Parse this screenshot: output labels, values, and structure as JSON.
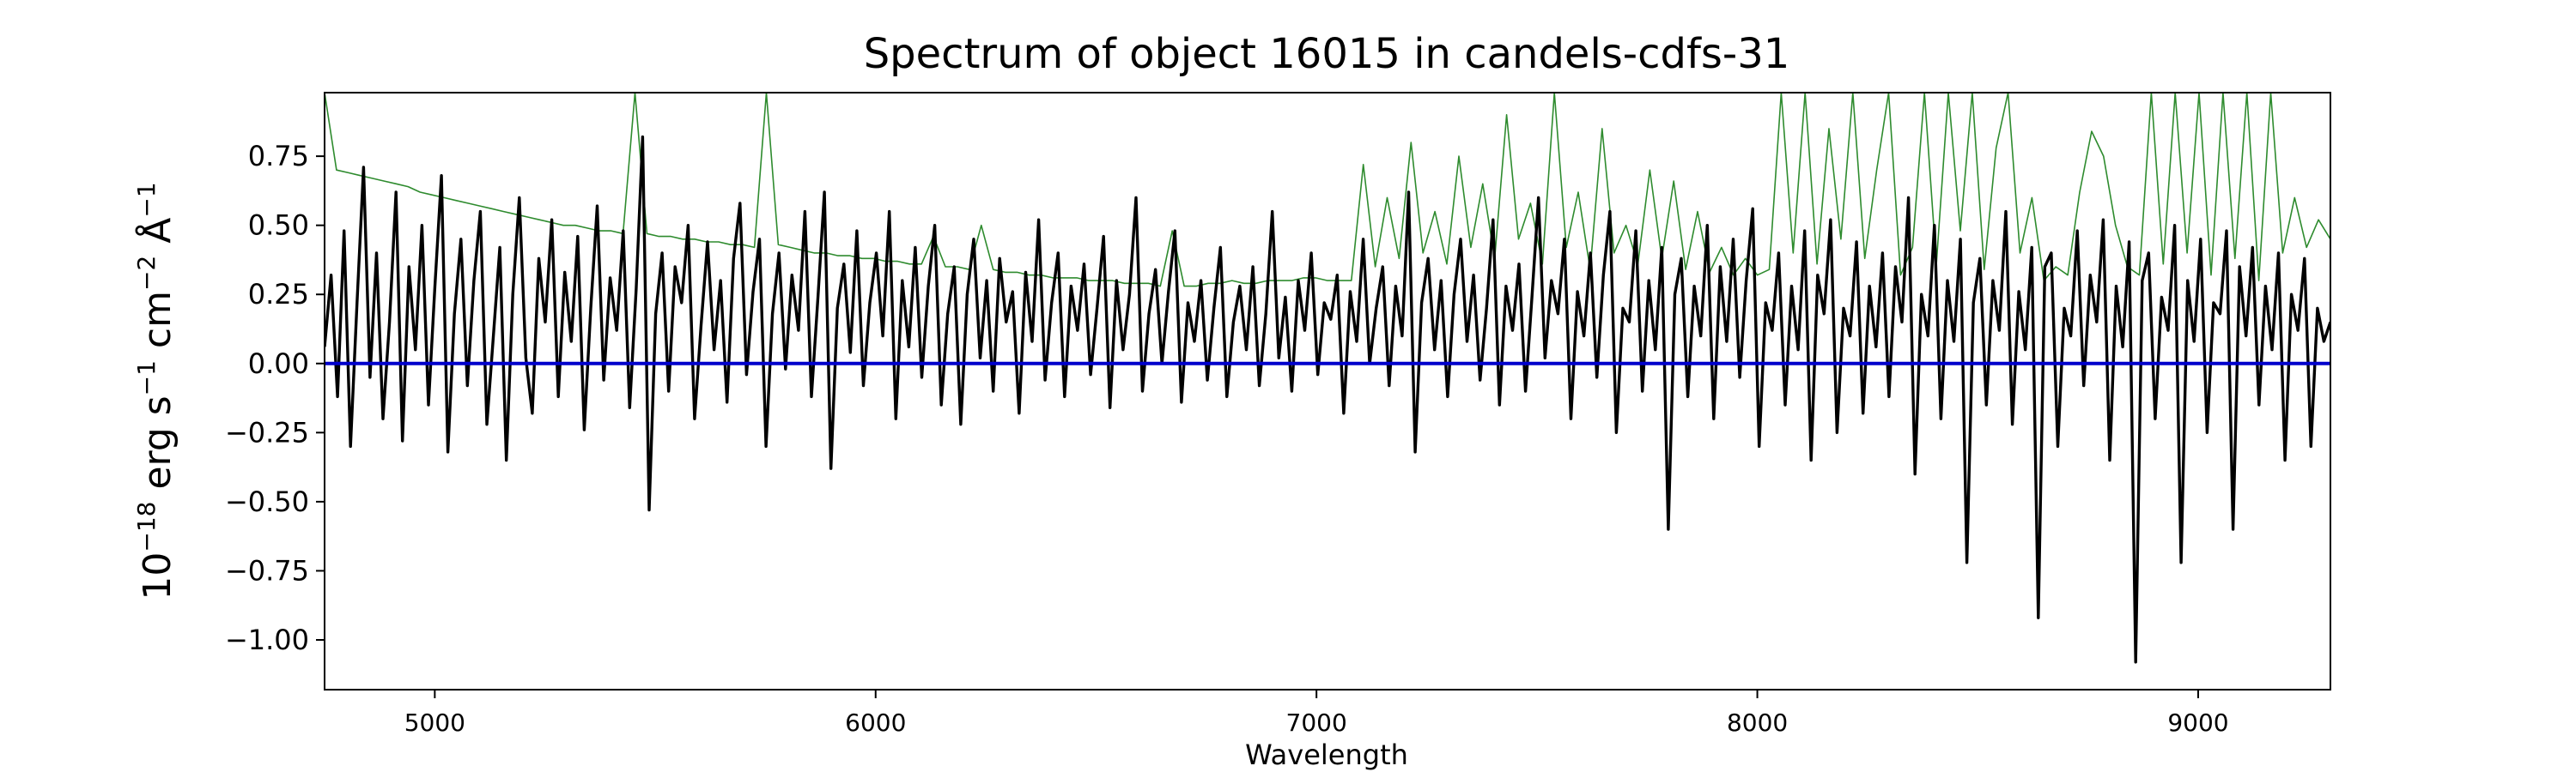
{
  "chart_data": {
    "type": "line",
    "title": "Spectrum of object 16015 in candels-cdfs-31",
    "xlabel": "Wavelength",
    "ylabel": {
      "base": "10",
      "exp1": "−18",
      "t1": " erg s",
      "exp2": "−1",
      "t2": " cm",
      "exp3": "−2",
      "t3": " Å",
      "exp4": "−1"
    },
    "xlim": [
      4750,
      9300
    ],
    "ylim": [
      -1.18,
      0.98
    ],
    "xticks": [
      5000,
      6000,
      7000,
      8000,
      9000
    ],
    "xtick_labels": [
      "5000",
      "6000",
      "7000",
      "8000",
      "9000"
    ],
    "yticks": [
      0.75,
      0.5,
      0.25,
      0.0,
      -0.25,
      -0.5,
      -0.75,
      -1.0
    ],
    "ytick_labels": [
      "0.75",
      "0.50",
      "0.25",
      "0.00",
      "−0.25",
      "−0.50",
      "−0.75",
      "−1.00"
    ],
    "grid": false,
    "colors": {
      "flux": "#000000",
      "error": "#2e8b2e",
      "zero": "#0000cc"
    },
    "series": [
      {
        "key": "flux",
        "x_start": 4750,
        "x_end": 9300,
        "y": [
          0.06,
          0.32,
          -0.12,
          0.48,
          -0.3,
          0.22,
          0.71,
          -0.05,
          0.4,
          -0.2,
          0.15,
          0.62,
          -0.28,
          0.35,
          0.05,
          0.5,
          -0.15,
          0.28,
          0.68,
          -0.32,
          0.18,
          0.45,
          -0.08,
          0.3,
          0.55,
          -0.22,
          0.1,
          0.42,
          -0.35,
          0.25,
          0.6,
          0.02,
          -0.18,
          0.38,
          0.15,
          0.52,
          -0.12,
          0.33,
          0.08,
          0.46,
          -0.24,
          0.2,
          0.57,
          -0.06,
          0.31,
          0.12,
          0.48,
          -0.16,
          0.27,
          0.82,
          -0.53,
          0.18,
          0.4,
          -0.1,
          0.35,
          0.22,
          0.5,
          -0.2,
          0.14,
          0.44,
          0.05,
          0.3,
          -0.14,
          0.38,
          0.58,
          -0.04,
          0.26,
          0.45,
          -0.3,
          0.18,
          0.4,
          -0.02,
          0.32,
          0.12,
          0.55,
          -0.12,
          0.24,
          0.62,
          -0.38,
          0.2,
          0.36,
          0.04,
          0.48,
          -0.08,
          0.22,
          0.4,
          0.1,
          0.55,
          -0.2,
          0.3,
          0.06,
          0.42,
          -0.05,
          0.28,
          0.5,
          -0.15,
          0.18,
          0.35,
          -0.22,
          0.25,
          0.45,
          0.02,
          0.3,
          -0.1,
          0.38,
          0.15,
          0.26,
          -0.18,
          0.33,
          0.08,
          0.52,
          -0.06,
          0.22,
          0.4,
          -0.12,
          0.28,
          0.12,
          0.36,
          -0.04,
          0.2,
          0.46,
          -0.16,
          0.3,
          0.05,
          0.25,
          0.6,
          -0.1,
          0.18,
          0.34,
          0.0,
          0.26,
          0.48,
          -0.14,
          0.22,
          0.08,
          0.3,
          -0.06,
          0.2,
          0.42,
          -0.12,
          0.15,
          0.28,
          0.05,
          0.35,
          -0.08,
          0.18,
          0.55,
          0.02,
          0.24,
          -0.1,
          0.3,
          0.12,
          0.4,
          -0.04,
          0.22,
          0.16,
          0.32,
          -0.18,
          0.26,
          0.08,
          0.45,
          0.0,
          0.2,
          0.35,
          -0.08,
          0.28,
          0.1,
          0.62,
          -0.32,
          0.22,
          0.38,
          0.05,
          0.3,
          -0.12,
          0.25,
          0.45,
          0.08,
          0.32,
          -0.06,
          0.2,
          0.52,
          -0.15,
          0.28,
          0.12,
          0.36,
          -0.1,
          0.24,
          0.6,
          0.02,
          0.3,
          0.18,
          0.45,
          -0.2,
          0.26,
          0.1,
          0.4,
          -0.05,
          0.32,
          0.55,
          -0.25,
          0.2,
          0.15,
          0.48,
          -0.1,
          0.3,
          0.05,
          0.42,
          -0.6,
          0.25,
          0.38,
          -0.12,
          0.28,
          0.1,
          0.5,
          -0.2,
          0.35,
          0.08,
          0.45,
          -0.05,
          0.3,
          0.56,
          -0.3,
          0.22,
          0.12,
          0.4,
          -0.15,
          0.28,
          0.05,
          0.48,
          -0.35,
          0.32,
          0.18,
          0.52,
          -0.25,
          0.2,
          0.1,
          0.44,
          -0.18,
          0.28,
          0.06,
          0.4,
          -0.12,
          0.35,
          0.15,
          0.6,
          -0.4,
          0.25,
          0.1,
          0.5,
          -0.2,
          0.3,
          0.08,
          0.45,
          -0.72,
          0.22,
          0.38,
          -0.15,
          0.3,
          0.12,
          0.55,
          -0.22,
          0.26,
          0.05,
          0.42,
          -0.92,
          0.35,
          0.4,
          -0.3,
          0.2,
          0.1,
          0.48,
          -0.08,
          0.32,
          0.15,
          0.52,
          -0.35,
          0.28,
          0.06,
          0.44,
          -1.08,
          0.3,
          0.4,
          -0.2,
          0.24,
          0.12,
          0.5,
          -0.72,
          0.3,
          0.08,
          0.45,
          -0.25,
          0.22,
          0.18,
          0.48,
          -0.6,
          0.35,
          0.1,
          0.42,
          -0.15,
          0.28,
          0.05,
          0.4,
          -0.35,
          0.25,
          0.12,
          0.38,
          -0.3,
          0.2,
          0.08,
          0.15
        ]
      },
      {
        "key": "error",
        "x_start": 4750,
        "x_end": 9300,
        "y": [
          0.98,
          0.7,
          0.69,
          0.68,
          0.67,
          0.66,
          0.65,
          0.64,
          0.62,
          0.61,
          0.6,
          0.59,
          0.58,
          0.57,
          0.56,
          0.55,
          0.54,
          0.53,
          0.52,
          0.51,
          0.5,
          0.5,
          0.49,
          0.48,
          0.48,
          0.47,
          0.98,
          0.47,
          0.46,
          0.46,
          0.45,
          0.45,
          0.44,
          0.44,
          0.43,
          0.43,
          0.42,
          0.98,
          0.43,
          0.42,
          0.41,
          0.4,
          0.4,
          0.39,
          0.39,
          0.38,
          0.38,
          0.37,
          0.37,
          0.36,
          0.36,
          0.46,
          0.35,
          0.35,
          0.34,
          0.5,
          0.34,
          0.33,
          0.33,
          0.32,
          0.32,
          0.31,
          0.31,
          0.31,
          0.3,
          0.3,
          0.3,
          0.29,
          0.29,
          0.29,
          0.28,
          0.48,
          0.28,
          0.28,
          0.29,
          0.29,
          0.3,
          0.29,
          0.29,
          0.3,
          0.3,
          0.3,
          0.31,
          0.31,
          0.3,
          0.3,
          0.3,
          0.72,
          0.35,
          0.6,
          0.38,
          0.8,
          0.4,
          0.55,
          0.36,
          0.75,
          0.42,
          0.65,
          0.38,
          0.9,
          0.45,
          0.58,
          0.36,
          0.98,
          0.42,
          0.62,
          0.34,
          0.85,
          0.4,
          0.5,
          0.36,
          0.7,
          0.38,
          0.66,
          0.34,
          0.55,
          0.33,
          0.42,
          0.32,
          0.38,
          0.32,
          0.34,
          0.98,
          0.4,
          0.98,
          0.36,
          0.85,
          0.45,
          0.98,
          0.38,
          0.7,
          0.98,
          0.32,
          0.42,
          0.98,
          0.36,
          0.98,
          0.48,
          0.98,
          0.34,
          0.78,
          0.98,
          0.4,
          0.6,
          0.3,
          0.35,
          0.32,
          0.62,
          0.84,
          0.75,
          0.5,
          0.35,
          0.32,
          0.98,
          0.36,
          0.98,
          0.4,
          0.98,
          0.32,
          0.98,
          0.38,
          0.98,
          0.3,
          0.98,
          0.4,
          0.6,
          0.42,
          0.52,
          0.45
        ]
      },
      {
        "key": "zero",
        "x_start": 4750,
        "x_end": 9300,
        "y": [
          0.0,
          0.0
        ]
      }
    ]
  }
}
